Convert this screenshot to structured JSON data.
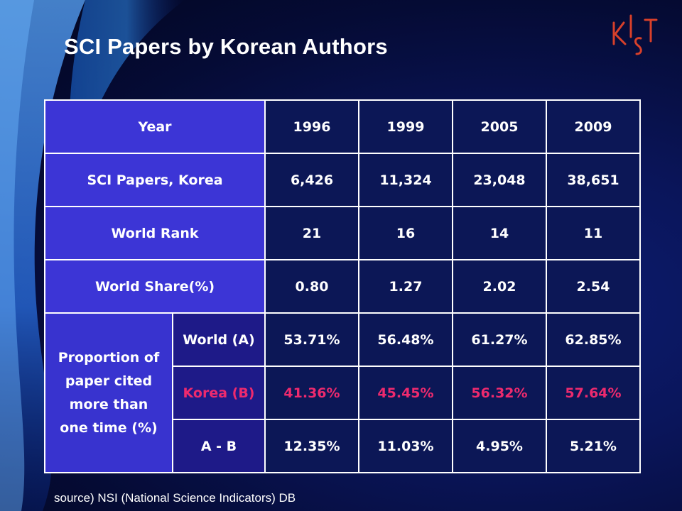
{
  "slide": {
    "title": "SCI Papers by Korean Authors",
    "source": "source) NSI (National Science Indicators) DB",
    "logo_text": "KIST"
  },
  "table": {
    "header": {
      "label": "Year",
      "years": [
        "1996",
        "1999",
        "2005",
        "2009"
      ]
    },
    "rows": [
      {
        "label": "SCI Papers, Korea",
        "values": [
          "6,426",
          "11,324",
          "23,048",
          "38,651"
        ]
      },
      {
        "label": "World Rank",
        "values": [
          "21",
          "16",
          "14",
          "11"
        ]
      },
      {
        "label": "World Share(%)",
        "values": [
          "0.80",
          "1.27",
          "2.02",
          "2.54"
        ]
      }
    ],
    "proportion": {
      "label_lines": [
        "Proportion of",
        "paper cited",
        "more than",
        "one time (%)"
      ],
      "subrows": [
        {
          "label": "World (A)",
          "values": [
            "53.71%",
            "56.48%",
            "61.27%",
            "62.85%"
          ]
        },
        {
          "label": "Korea (B)",
          "values": [
            "41.36%",
            "45.45%",
            "56.32%",
            "57.64%"
          ]
        },
        {
          "label": "A - B",
          "values": [
            "12.35%",
            "11.03%",
            "4.95%",
            "5.21%"
          ]
        }
      ]
    }
  },
  "colors": {
    "background": "#0a155a",
    "label_cell": "#3c35d6",
    "value_cell": "#0c1756",
    "highlight_text": "#ee2a6e",
    "logo": "#d8402a"
  }
}
